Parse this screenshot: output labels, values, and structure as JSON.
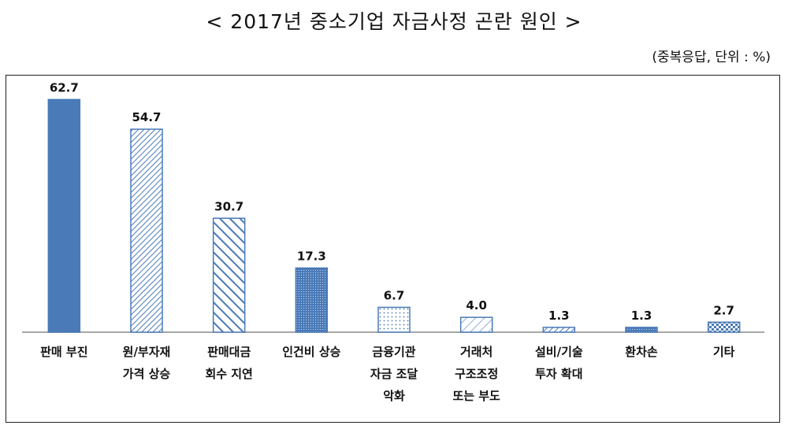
{
  "title": "< 2017년 중소기업 자금사정 곤란 원인 >",
  "unit_note": "(중복응답, 단위 : %)",
  "chart_data": {
    "type": "bar",
    "title": "< 2017년 중소기업 자금사정 곤란 원인 >",
    "xlabel": "",
    "ylabel": "",
    "ylim": [
      0,
      70
    ],
    "grid": false,
    "legend": "none",
    "categories": [
      [
        "판매 부진"
      ],
      [
        "원/부자재",
        "가격 상승"
      ],
      [
        "판매대금",
        "회수 지연"
      ],
      [
        "인건비 상승"
      ],
      [
        "금융기관",
        "자금 조달",
        "악화"
      ],
      [
        "거래처",
        "구조조정",
        "또는 부도"
      ],
      [
        "설비/기술",
        "투자 확대"
      ],
      [
        "환차손"
      ],
      [
        "기타"
      ]
    ],
    "values": [
      62.7,
      54.7,
      30.7,
      17.3,
      6.7,
      4.0,
      1.3,
      1.3,
      2.7
    ],
    "value_labels": [
      "62.7",
      "54.7",
      "30.7",
      "17.3",
      "6.7",
      "4.0",
      "1.3",
      "1.3",
      "2.7"
    ],
    "bar_color": "#4a7ab8",
    "fill_patterns": [
      "solid",
      "diag-fine",
      "diag-wide",
      "dots-dense",
      "dots-sparse",
      "diag-cross",
      "diag-fine",
      "dots-dense",
      "checker"
    ]
  }
}
